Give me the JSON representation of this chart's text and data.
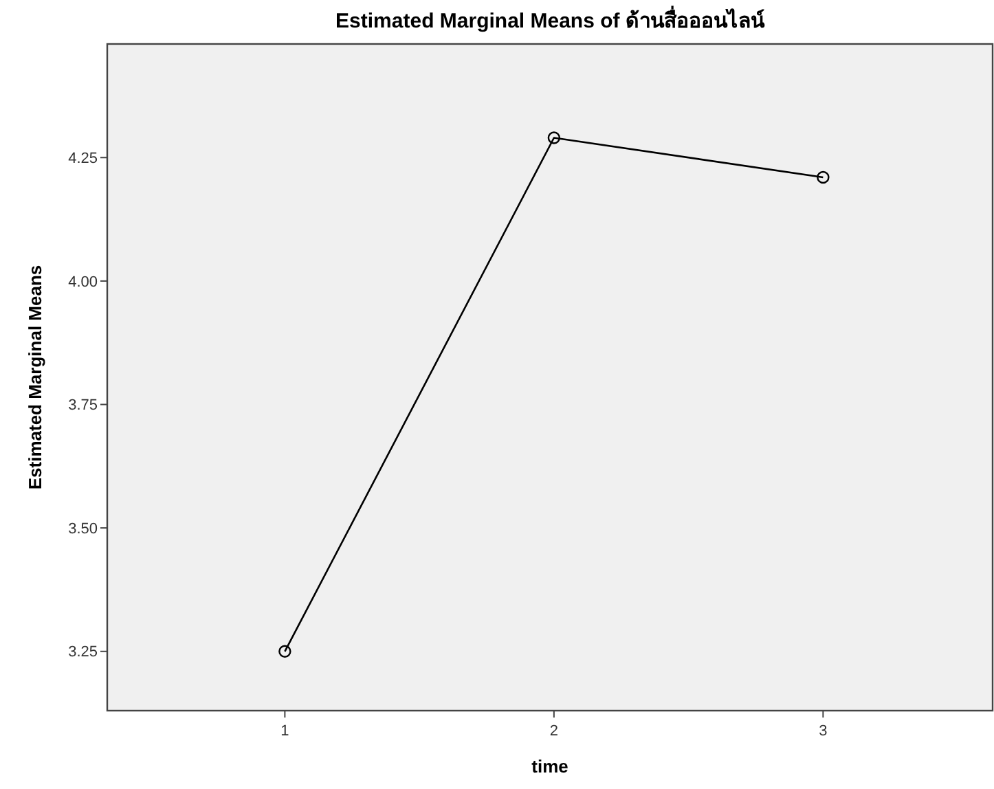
{
  "chart_data": {
    "type": "line",
    "title": "Estimated Marginal Means of ด้านสื่อออนไลน์",
    "xlabel": "time",
    "ylabel": "Estimated Marginal Means",
    "x": [
      1,
      2,
      3
    ],
    "series": [
      {
        "color": "#000000",
        "values": [
          3.25,
          4.29,
          4.21
        ]
      }
    ],
    "xlim": [
      0.34,
      3.63
    ],
    "xticks": [
      1,
      2,
      3
    ],
    "ylim": [
      3.13,
      4.48
    ],
    "yticks": [
      {
        "value": 3.25,
        "label": "3.25"
      },
      {
        "value": 3.5,
        "label": "3.50"
      },
      {
        "value": 3.75,
        "label": "3.75"
      },
      {
        "value": 4,
        "label": "4.00"
      },
      {
        "value": 4.25,
        "label": "4.25"
      }
    ],
    "grid": false,
    "marker": "circle"
  }
}
